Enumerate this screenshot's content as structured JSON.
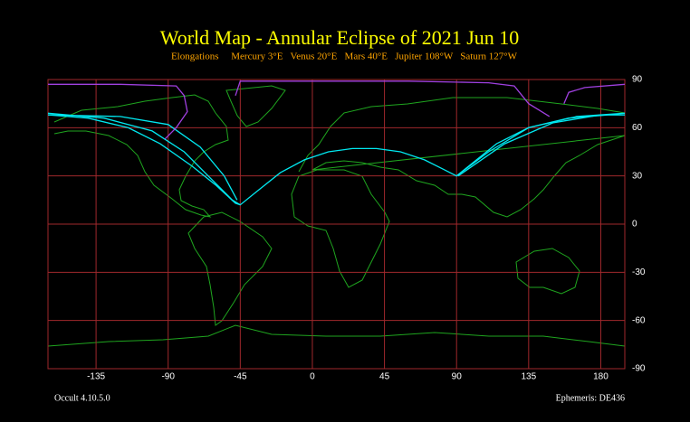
{
  "chart_data": {
    "type": "map",
    "title": "World Map - Annular Eclipse of 2021 Jun 10",
    "subtitle": "Elongations     Mercury 3°E   Venus 20°E   Mars 40°E   Jupiter 108°W   Saturn 127°W",
    "footer_left": "Occult 4.10.5.0",
    "footer_right": "Ephemeris: DE436",
    "xlim": [
      -165,
      195
    ],
    "ylim": [
      -90,
      90
    ],
    "xticks": [
      -135,
      -90,
      -45,
      0,
      45,
      90,
      135,
      180
    ],
    "yticks": [
      90,
      60,
      30,
      0,
      -30,
      -60,
      -90
    ],
    "grid": true,
    "grid_color": "#a0282c",
    "paths": [
      {
        "color": "#00e8f0",
        "lon": [
          -165,
          -140,
          -115,
          -95,
          -75,
          -60,
          -48,
          -45,
          -35,
          -20,
          -5,
          10,
          25,
          40,
          55,
          70,
          82,
          90,
          100,
          115,
          135,
          160,
          185,
          195
        ],
        "lat": [
          68,
          66,
          60,
          50,
          36,
          24,
          13,
          12,
          20,
          32,
          40,
          45,
          47,
          47,
          45,
          40,
          34,
          30,
          38,
          50,
          60,
          66,
          68,
          68
        ]
      },
      {
        "color": "#00e8f0",
        "lon": [
          -165,
          -130,
          -100,
          -80,
          -65,
          -50,
          -45
        ],
        "lat": [
          69,
          66,
          58,
          45,
          30,
          15,
          12
        ]
      },
      {
        "color": "#00e8f0",
        "lon": [
          -165,
          -120,
          -90,
          -70,
          -55,
          -47
        ],
        "lat": [
          68,
          67,
          62,
          48,
          30,
          15
        ]
      },
      {
        "color": "#00e8f0",
        "lon": [
          90,
          110,
          135,
          165,
          195
        ],
        "lat": [
          30,
          45,
          60,
          67,
          69
        ]
      },
      {
        "color": "#00e8f0",
        "lon": [
          91,
          120,
          150,
          180,
          195
        ],
        "lat": [
          30,
          50,
          63,
          68,
          68
        ]
      },
      {
        "color": "#a040e0",
        "lon": [
          -165,
          -120,
          -85,
          -80,
          -78,
          -85,
          -92,
          null,
          -48,
          -45,
          0,
          60,
          110,
          126,
          135,
          148,
          null,
          157,
          160,
          170,
          195
        ],
        "lat": [
          87,
          87,
          86,
          80,
          70,
          60,
          53,
          null,
          80,
          89,
          89,
          89,
          88,
          86,
          75,
          67,
          null,
          75,
          82,
          85,
          87
        ]
      }
    ]
  }
}
